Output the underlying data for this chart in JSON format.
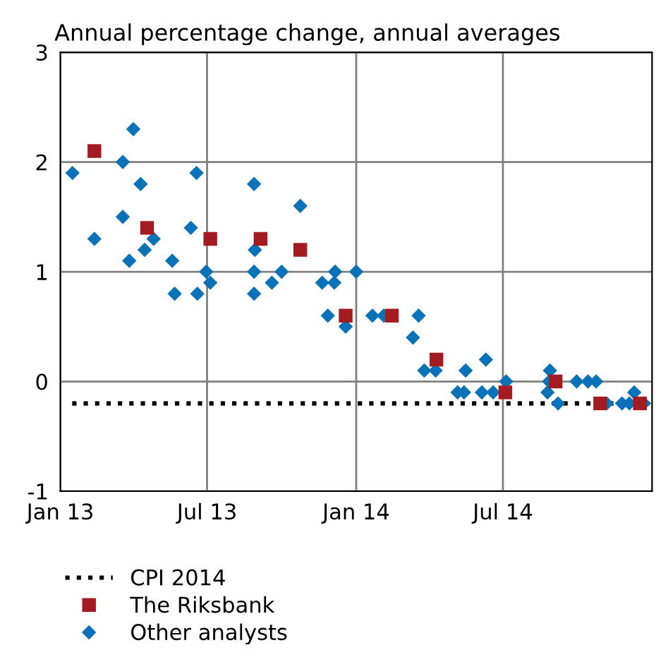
{
  "chart_data": {
    "type": "scatter",
    "title": "Annual percentage change, annual averages",
    "xlim": [
      "2013-01-01",
      "2015-01-01"
    ],
    "xticks": [
      {
        "value": "2013-01-01",
        "label": "Jan 13"
      },
      {
        "value": "2013-07-01",
        "label": "Jul 13"
      },
      {
        "value": "2014-01-01",
        "label": "Jan 14"
      },
      {
        "value": "2014-07-01",
        "label": "Jul 14"
      }
    ],
    "ylim": [
      -1,
      3
    ],
    "yticks": [
      -1,
      0,
      1,
      2,
      3
    ],
    "grid": true,
    "legend": "bottom",
    "ref_lines": [
      {
        "axis": "y",
        "value": -0.2,
        "label": "CPI 2014",
        "color": "#000000",
        "line_style": "dotted"
      }
    ],
    "series": [
      {
        "name": "The Riksbank",
        "color": "#a31c22",
        "marker": "square",
        "x": [
          "2013-02-12",
          "2013-04-18",
          "2013-07-05",
          "2013-09-05",
          "2013-10-24",
          "2013-12-19",
          "2014-02-14",
          "2014-04-10",
          "2014-07-04",
          "2014-09-04",
          "2014-10-29",
          "2014-12-17"
        ],
        "values": [
          2.1,
          1.4,
          1.3,
          1.3,
          1.2,
          0.6,
          0.6,
          0.2,
          -0.1,
          0.0,
          -0.2,
          -0.2
        ]
      },
      {
        "name": "Other analysts",
        "color": "#0a72b8",
        "marker": "diamond",
        "x": [
          "2013-01-16",
          "2013-02-12",
          "2013-04-01",
          "2013-03-19",
          "2013-04-10",
          "2013-03-19",
          "2013-03-27",
          "2013-04-15",
          "2013-04-26",
          "2013-05-19",
          "2013-05-22",
          "2013-06-11",
          "2013-06-18",
          "2013-06-19",
          "2013-06-30",
          "2013-07-05",
          "2013-08-28",
          "2013-08-29",
          "2013-08-28",
          "2013-08-28",
          "2013-09-19",
          "2013-10-01",
          "2013-10-24",
          "2013-11-20",
          "2013-12-05",
          "2013-12-06",
          "2013-11-27",
          "2013-12-19",
          "2014-01-01",
          "2014-01-21",
          "2014-02-04",
          "2014-03-19",
          "2014-03-12",
          "2014-03-26",
          "2014-04-09",
          "2014-05-16",
          "2014-06-10",
          "2014-05-06",
          "2014-05-14",
          "2014-06-05",
          "2014-06-19",
          "2014-07-05",
          "2014-08-28",
          "2014-08-27",
          "2014-08-25",
          "2014-09-07",
          "2014-09-30",
          "2014-10-14",
          "2014-10-24",
          "2014-11-06",
          "2014-11-25",
          "2014-12-04",
          "2014-12-10",
          "2014-12-22"
        ],
        "values": [
          1.9,
          1.3,
          2.3,
          2.0,
          1.8,
          1.5,
          1.1,
          1.2,
          1.3,
          1.1,
          0.8,
          1.4,
          1.9,
          0.8,
          1.0,
          0.9,
          1.8,
          1.2,
          1.0,
          0.8,
          0.9,
          1.0,
          1.6,
          0.9,
          0.9,
          1.0,
          0.6,
          0.5,
          1.0,
          0.6,
          0.6,
          0.6,
          0.4,
          0.1,
          0.1,
          0.1,
          0.2,
          -0.1,
          -0.1,
          -0.1,
          -0.1,
          0.0,
          0.1,
          0.0,
          -0.1,
          -0.2,
          0.0,
          0.0,
          0.0,
          -0.2,
          -0.2,
          -0.2,
          -0.1,
          -0.2
        ]
      }
    ]
  }
}
